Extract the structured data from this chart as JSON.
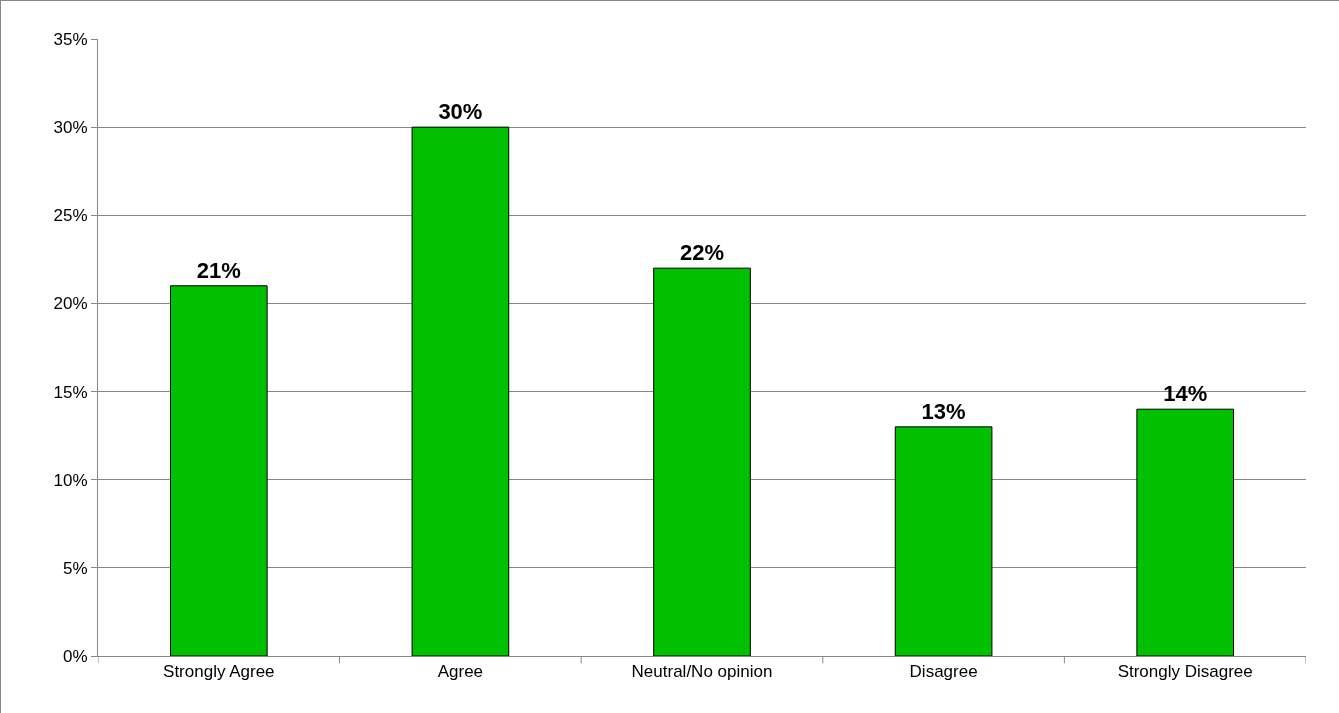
{
  "chart_data": {
    "type": "bar",
    "categories": [
      "Strongly Agree",
      "Agree",
      "Neutral/No opinion",
      "Disagree",
      "Strongly Disagree"
    ],
    "values": [
      21,
      30,
      22,
      13,
      14
    ],
    "value_labels": [
      "21%",
      "30%",
      "22%",
      "13%",
      "14%"
    ],
    "color": "#00c000",
    "ylim": [
      0,
      35
    ],
    "yticks": [
      {
        "value": 0,
        "label": "0%"
      },
      {
        "value": 5,
        "label": "5%"
      },
      {
        "value": 10,
        "label": "10%"
      },
      {
        "value": 15,
        "label": "15%"
      },
      {
        "value": 20,
        "label": "20%"
      },
      {
        "value": 25,
        "label": "25%"
      },
      {
        "value": 30,
        "label": "30%"
      },
      {
        "value": 35,
        "label": "35%"
      }
    ],
    "grid": "y"
  }
}
